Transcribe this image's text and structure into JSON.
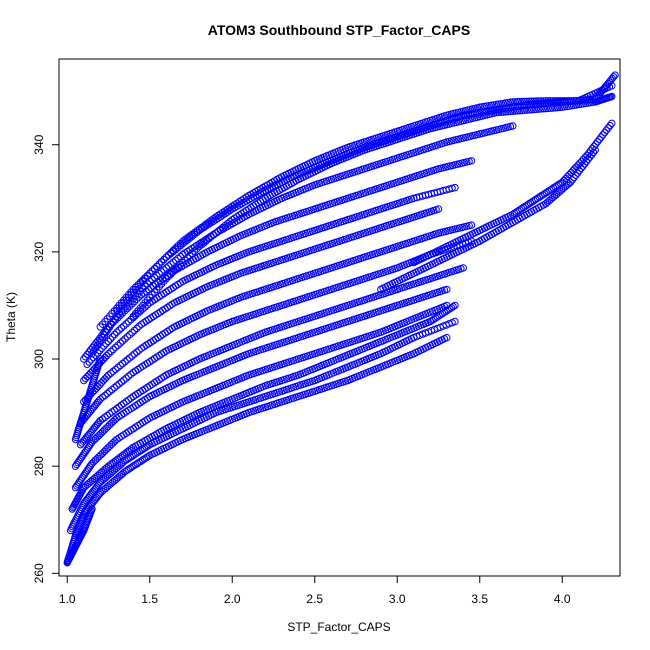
{
  "chart_data": {
    "type": "scatter",
    "title": "ATOM3 Southbound STP_Factor_CAPS",
    "xlabel": "STP_Factor_CAPS",
    "ylabel": "Theta (K)",
    "xlim": [
      0.95,
      4.35
    ],
    "ylim": [
      259.5,
      356
    ],
    "x_ticks": [
      1.0,
      1.5,
      2.0,
      2.5,
      3.0,
      3.5,
      4.0
    ],
    "x_tick_labels": [
      "1.0",
      "1.5",
      "2.0",
      "2.5",
      "3.0",
      "3.5",
      "4.0"
    ],
    "y_ticks": [
      260,
      280,
      300,
      320,
      340
    ],
    "y_tick_labels": [
      "260",
      "280",
      "300",
      "320",
      "340"
    ],
    "marker": "open-circle",
    "color": "#0000ff",
    "series": [
      {
        "x": [
          1.0,
          1.05,
          1.1,
          1.2,
          1.35,
          1.5,
          1.7,
          1.9,
          2.1,
          2.3,
          2.5,
          2.7,
          2.9,
          3.1,
          3.3
        ],
        "y": [
          262,
          267,
          271,
          275,
          279,
          282,
          285,
          287.5,
          290,
          292,
          294,
          296,
          298.5,
          301,
          304
        ]
      },
      {
        "x": [
          1.02,
          1.1,
          1.2,
          1.35,
          1.5,
          1.7,
          1.9,
          2.1,
          2.3,
          2.5,
          2.7,
          2.9,
          3.1,
          3.35
        ],
        "y": [
          268,
          273,
          277,
          281,
          284,
          287,
          290,
          292,
          294,
          296,
          298.5,
          301,
          304,
          307
        ]
      },
      {
        "x": [
          1.03,
          1.1,
          1.25,
          1.4,
          1.6,
          1.8,
          2.0,
          2.2,
          2.4,
          2.6,
          2.8,
          3.0,
          3.2,
          3.35
        ],
        "y": [
          272,
          276,
          280,
          283.5,
          287,
          290,
          292.5,
          295,
          297,
          299.5,
          302,
          304.5,
          307,
          310
        ]
      },
      {
        "x": [
          1.05,
          1.15,
          1.3,
          1.5,
          1.7,
          1.9,
          2.1,
          2.3,
          2.5,
          2.7,
          2.9,
          3.1,
          3.3
        ],
        "y": [
          276,
          280.5,
          285,
          289,
          292,
          294.5,
          297,
          299,
          301,
          303,
          305,
          307.5,
          310
        ]
      },
      {
        "x": [
          1.05,
          1.15,
          1.3,
          1.5,
          1.7,
          1.9,
          2.1,
          2.3,
          2.5,
          2.7,
          2.9,
          3.1,
          3.3
        ],
        "y": [
          280,
          284.5,
          289,
          293,
          296,
          298.5,
          301,
          303,
          305,
          307,
          309,
          311,
          313
        ]
      },
      {
        "x": [
          1.08,
          1.2,
          1.4,
          1.6,
          1.8,
          2.0,
          2.2,
          2.4,
          2.6,
          2.8,
          3.0,
          3.2,
          3.4
        ],
        "y": [
          284,
          288.5,
          293,
          297,
          300,
          302.5,
          305,
          307,
          309,
          311,
          313,
          315,
          317
        ]
      },
      {
        "x": [
          1.08,
          1.2,
          1.4,
          1.6,
          1.8,
          2.0,
          2.2,
          2.4,
          2.6,
          2.8,
          3.0,
          3.2,
          3.45
        ],
        "y": [
          288,
          292.5,
          297.5,
          301.5,
          304.5,
          307,
          309,
          311,
          313,
          315,
          317,
          319.5,
          322
        ]
      },
      {
        "x": [
          1.1,
          1.25,
          1.45,
          1.65,
          1.85,
          2.05,
          2.25,
          2.45,
          2.65,
          2.85,
          3.05,
          3.25,
          3.45
        ],
        "y": [
          292,
          297,
          302,
          306,
          309,
          311.5,
          313.5,
          315.5,
          317.5,
          319.5,
          321.5,
          323.5,
          325
        ]
      },
      {
        "x": [
          1.1,
          1.25,
          1.45,
          1.65,
          1.85,
          2.05,
          2.25,
          2.45,
          2.65,
          2.85,
          3.05,
          3.25
        ],
        "y": [
          296,
          301,
          306.5,
          310.5,
          313.5,
          316,
          318,
          320,
          322,
          324,
          326,
          328
        ]
      },
      {
        "x": [
          1.12,
          1.3,
          1.5,
          1.7,
          1.9,
          2.1,
          2.3,
          2.5,
          2.7,
          2.9,
          3.1,
          3.35
        ],
        "y": [
          299,
          305,
          310.5,
          314.5,
          317.5,
          320,
          322,
          324,
          326,
          328,
          330,
          332
        ]
      },
      {
        "x": [
          1.1,
          1.25,
          1.45,
          1.65,
          1.85,
          2.05,
          2.25,
          2.45,
          2.65,
          2.85,
          3.05,
          3.25,
          3.45
        ],
        "y": [
          300,
          306,
          312,
          316.5,
          320,
          323,
          325.5,
          327.5,
          329.5,
          331.5,
          333.5,
          335.5,
          337
        ]
      },
      {
        "x": [
          1.15,
          1.3,
          1.5,
          1.7,
          1.9,
          2.1,
          2.3,
          2.5,
          2.7,
          2.9,
          3.1,
          3.3,
          3.5,
          3.7
        ],
        "y": [
          301,
          308,
          314.5,
          319.5,
          323.5,
          327,
          330,
          332.5,
          334.5,
          336.5,
          338.5,
          340.5,
          342,
          343.5
        ]
      },
      {
        "x": [
          1.2,
          1.4,
          1.6,
          1.8,
          2.0,
          2.2,
          2.4,
          2.6,
          2.8,
          3.0,
          3.2,
          3.4,
          3.6,
          3.8,
          4.0,
          4.2,
          4.32
        ],
        "y": [
          306,
          313,
          319,
          324,
          328,
          331.5,
          334.5,
          337,
          339.5,
          341.5,
          343.5,
          345.5,
          346.5,
          347.5,
          348,
          348.5,
          353
        ]
      },
      {
        "x": [
          1.3,
          1.5,
          1.7,
          1.9,
          2.1,
          2.3,
          2.5,
          2.7,
          2.9,
          3.1,
          3.3,
          3.5,
          3.7,
          3.9,
          4.1,
          4.3
        ],
        "y": [
          309,
          316,
          322,
          326.5,
          330.5,
          334,
          337,
          339.5,
          341.5,
          343.5,
          345.5,
          347,
          348,
          348.2,
          348.2,
          351
        ]
      },
      {
        "x": [
          1.4,
          1.6,
          1.8,
          2.0,
          2.2,
          2.4,
          2.6,
          2.8,
          3.0,
          3.2,
          3.4,
          3.6,
          3.8,
          4.0,
          4.2,
          4.3
        ],
        "y": [
          308,
          315,
          321,
          326,
          330,
          333.5,
          336.5,
          339,
          341,
          343,
          344.5,
          346,
          346.5,
          347,
          348,
          349
        ]
      },
      {
        "x": [
          3.1,
          3.3,
          3.5,
          3.7,
          3.85,
          4.0,
          4.15,
          4.3
        ],
        "y": [
          318,
          321,
          324,
          327,
          330,
          333,
          338,
          344
        ]
      },
      {
        "x": [
          2.9,
          3.1,
          3.3,
          3.5,
          3.7,
          3.9,
          4.05,
          4.2
        ],
        "y": [
          313,
          316,
          319,
          322,
          325.5,
          329,
          333,
          339
        ]
      },
      {
        "x": [
          1.0,
          1.05,
          1.1,
          1.15
        ],
        "y": [
          262,
          265,
          268,
          272
        ]
      },
      {
        "x": [
          1.05,
          1.1,
          1.15,
          1.2
        ],
        "y": [
          285,
          290,
          295,
          300
        ]
      }
    ]
  }
}
